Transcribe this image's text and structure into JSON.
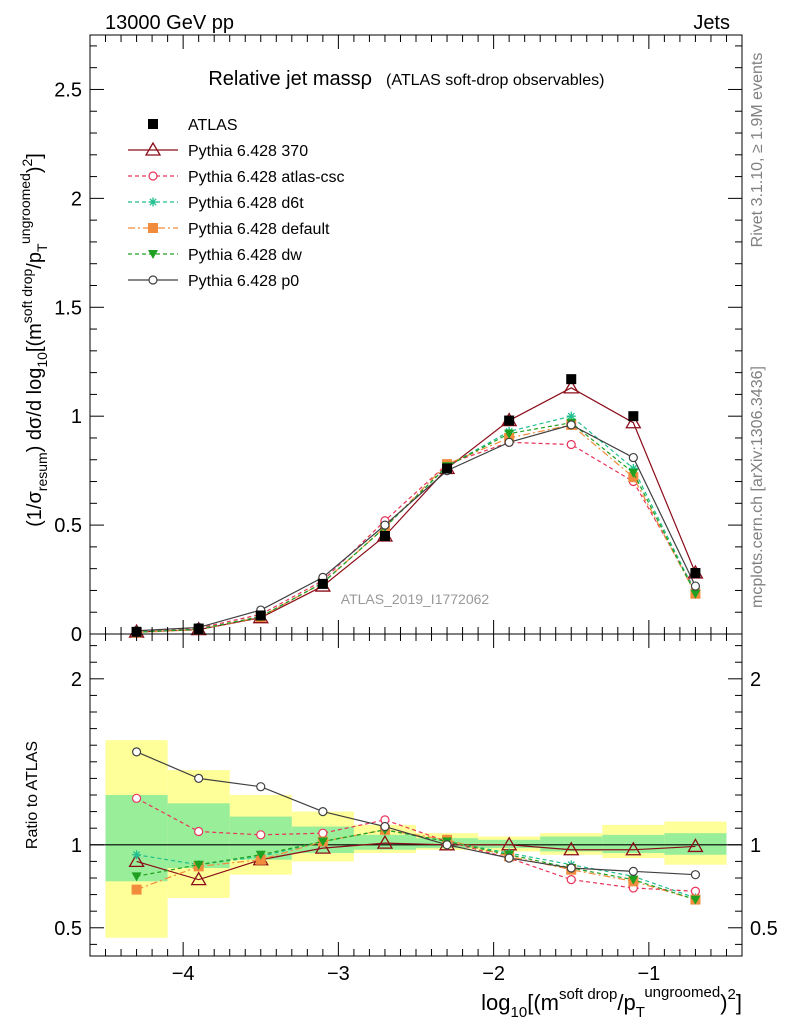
{
  "header": {
    "left": "13000 GeV pp",
    "right": "Jets"
  },
  "side_labels": {
    "rivet": "Rivet 3.1.10, ≥ 1.9M events",
    "mcplots": "mcplots.cern.ch [arXiv:1306.3436]"
  },
  "chart_data": [
    {
      "type": "line",
      "title": "Relative jet massρ",
      "subtitle": "(ATLAS soft-drop observables)",
      "watermark": "ATLAS_2019_I1772062",
      "ylabel": "(1/σresum) dσ/d log10[(msoft drop/pTungroomed)2]",
      "xlim": [
        -4.6,
        -0.4
      ],
      "ylim": [
        0,
        2.75
      ],
      "yticks": [
        0,
        0.5,
        1,
        1.5,
        2,
        2.5
      ],
      "ytick_labels": [
        "0",
        "0.5",
        "1",
        "1.5",
        "2",
        "2.5"
      ],
      "legend_position": "top-left",
      "x": [
        -4.3,
        -3.9,
        -3.5,
        -3.1,
        -2.7,
        -2.3,
        -1.9,
        -1.5,
        -1.1,
        -0.7
      ],
      "bin_edges": [
        -4.5,
        -4.1,
        -3.7,
        -3.3,
        -2.9,
        -2.5,
        -2.1,
        -1.7,
        -1.3,
        -0.9,
        -0.5
      ],
      "series": [
        {
          "name": "ATLAS",
          "marker": "square-filled",
          "color": "#000000",
          "dash": "none",
          "line": false,
          "values": [
            0.01,
            0.025,
            0.085,
            0.23,
            0.45,
            0.76,
            0.98,
            1.17,
            1.0,
            0.28
          ]
        },
        {
          "name": "Pythia 6.428 370",
          "marker": "triangle-open",
          "color": "#8b0d1a",
          "dash": "none",
          "line": true,
          "values": [
            0.009,
            0.02,
            0.075,
            0.22,
            0.45,
            0.76,
            0.98,
            1.13,
            0.97,
            0.28
          ]
        },
        {
          "name": "Pythia 6.428 atlas-csc",
          "marker": "circle-open",
          "color": "#e8345a",
          "dash": "4,3",
          "line": true,
          "values": [
            0.013,
            0.027,
            0.09,
            0.245,
            0.52,
            0.78,
            0.88,
            0.87,
            0.7,
            0.2
          ]
        },
        {
          "name": "Pythia 6.428 d6t",
          "marker": "star",
          "color": "#1fbf8f",
          "dash": "4,3",
          "line": true,
          "values": [
            0.0095,
            0.022,
            0.08,
            0.235,
            0.49,
            0.77,
            0.93,
            1.0,
            0.76,
            0.19
          ]
        },
        {
          "name": "Pythia 6.428 default",
          "marker": "square-filled",
          "color": "#f08c3c",
          "dash": "7,3,2,3",
          "line": true,
          "values": [
            0.007,
            0.02,
            0.078,
            0.235,
            0.49,
            0.78,
            0.9,
            0.96,
            0.72,
            0.185
          ]
        },
        {
          "name": "Pythia 6.428 dw",
          "marker": "triangle-down-filled",
          "color": "#20a020",
          "dash": "4,3",
          "line": true,
          "values": [
            0.008,
            0.022,
            0.08,
            0.235,
            0.49,
            0.77,
            0.92,
            0.97,
            0.74,
            0.185
          ]
        },
        {
          "name": "Pythia 6.428 p0",
          "marker": "circle-open",
          "color": "#404040",
          "dash": "none",
          "line": true,
          "values": [
            0.015,
            0.03,
            0.11,
            0.26,
            0.5,
            0.75,
            0.88,
            0.96,
            0.81,
            0.22
          ]
        }
      ]
    },
    {
      "type": "line",
      "ylabel": "Ratio to ATLAS",
      "xlabel": "log10[(msoft drop/pTungroomed)2]",
      "xlim": [
        -4.6,
        -0.4
      ],
      "ylim": [
        0.33,
        2.27
      ],
      "xticks": [
        -4,
        -3,
        -2,
        -1
      ],
      "xtick_labels": [
        "−4",
        "−3",
        "−2",
        "−1"
      ],
      "yticks": [
        0.5,
        1,
        2
      ],
      "ytick_labels": [
        "0.5",
        "1",
        "2"
      ],
      "reference_line": 1,
      "x": [
        -4.3,
        -3.9,
        -3.5,
        -3.1,
        -2.7,
        -2.3,
        -1.9,
        -1.5,
        -1.1,
        -0.7
      ],
      "uncertainty_bands": {
        "bin_edges": [
          -4.5,
          -4.1,
          -3.7,
          -3.3,
          -2.9,
          -2.5,
          -2.1,
          -1.7,
          -1.3,
          -0.9,
          -0.5
        ],
        "total": {
          "color": "#ffff99",
          "low": [
            0.44,
            0.68,
            0.82,
            0.9,
            0.95,
            0.97,
            0.96,
            0.94,
            0.92,
            0.88
          ],
          "high": [
            1.63,
            1.45,
            1.3,
            1.2,
            1.12,
            1.07,
            1.05,
            1.07,
            1.12,
            1.14
          ]
        },
        "stat": {
          "color": "#99ee99",
          "low": [
            0.78,
            0.86,
            0.91,
            0.95,
            0.97,
            0.98,
            0.98,
            0.96,
            0.95,
            0.94
          ],
          "high": [
            1.3,
            1.25,
            1.17,
            1.11,
            1.06,
            1.04,
            1.03,
            1.05,
            1.06,
            1.07
          ]
        }
      },
      "series": [
        {
          "name": "Pythia 6.428 370",
          "marker": "triangle-open",
          "color": "#8b0d1a",
          "dash": "none",
          "values": [
            0.9,
            0.79,
            0.91,
            0.98,
            1.01,
            1.0,
            1.0,
            0.97,
            0.97,
            0.99
          ]
        },
        {
          "name": "Pythia 6.428 atlas-csc",
          "marker": "circle-open",
          "color": "#e8345a",
          "dash": "4,3",
          "values": [
            1.28,
            1.08,
            1.06,
            1.07,
            1.15,
            1.02,
            0.92,
            0.79,
            0.74,
            0.72
          ]
        },
        {
          "name": "Pythia 6.428 d6t",
          "marker": "star",
          "color": "#1fbf8f",
          "dash": "4,3",
          "values": [
            0.94,
            0.88,
            0.93,
            1.02,
            1.09,
            1.02,
            0.95,
            0.88,
            0.81,
            0.68
          ]
        },
        {
          "name": "Pythia 6.428 default",
          "marker": "square-filled",
          "color": "#f08c3c",
          "dash": "7,3,2,3",
          "values": [
            0.73,
            0.87,
            0.91,
            1.02,
            1.09,
            1.03,
            0.93,
            0.85,
            0.78,
            0.67
          ]
        },
        {
          "name": "Pythia 6.428 dw",
          "marker": "triangle-down-filled",
          "color": "#20a020",
          "dash": "4,3",
          "values": [
            0.81,
            0.88,
            0.94,
            1.02,
            1.09,
            1.02,
            0.94,
            0.86,
            0.79,
            0.67
          ]
        },
        {
          "name": "Pythia 6.428 p0",
          "marker": "circle-open",
          "color": "#404040",
          "dash": "none",
          "values": [
            1.56,
            1.4,
            1.35,
            1.2,
            1.11,
            1.0,
            0.92,
            0.86,
            0.84,
            0.82
          ]
        }
      ]
    }
  ]
}
